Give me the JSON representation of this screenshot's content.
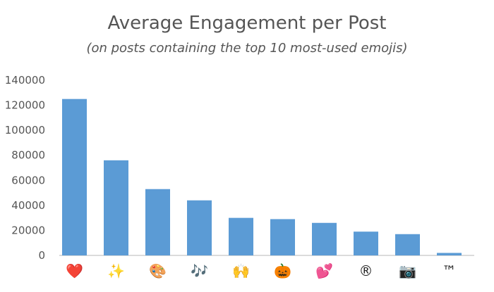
{
  "chart_data": {
    "type": "bar",
    "title": "Average Engagement per Post",
    "subtitle": "(on posts containing the top 10 most-used emojis)",
    "categories": [
      "❤️",
      "✨",
      "🎨",
      "🎶",
      "🙌",
      "🎃",
      "💕",
      "®",
      "📷",
      "™"
    ],
    "values": [
      125000,
      76000,
      53000,
      44000,
      30000,
      29000,
      26000,
      19000,
      17000,
      2000
    ],
    "ylim": [
      0,
      140000
    ],
    "yticks": [
      "0",
      "20000",
      "40000",
      "60000",
      "80000",
      "100000",
      "120000",
      "140000"
    ],
    "grid": false,
    "legend": "none",
    "bar_color": "#5b9bd5",
    "category_colors": [
      "#d81b1b",
      "#e0b800",
      "#b8862b",
      "#222222",
      "#d8a21e",
      "#e06f1a",
      "#e0457b",
      "#222222",
      "#666666",
      "#222222"
    ]
  }
}
